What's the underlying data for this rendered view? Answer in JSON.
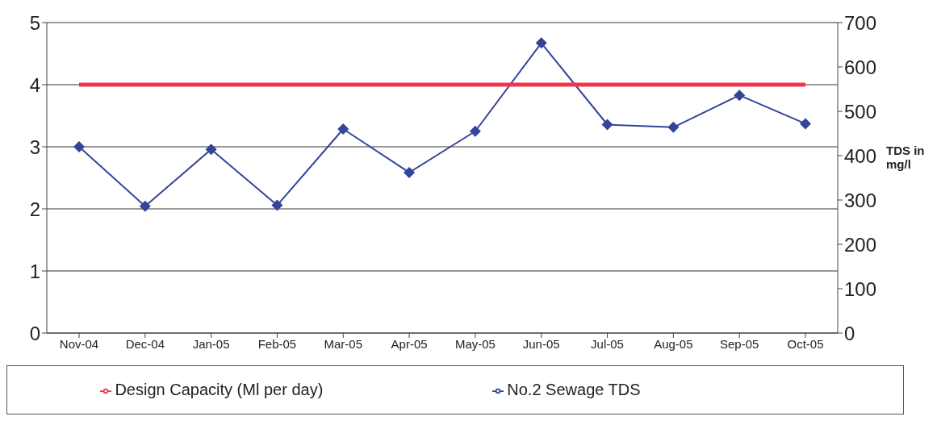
{
  "chart_data": {
    "type": "line",
    "y2label": "TDS in mg/l",
    "categories": [
      "Nov-04",
      "Dec-04",
      "Jan-05",
      "Feb-05",
      "Mar-05",
      "Apr-05",
      "May-05",
      "Jun-05",
      "Jul-05",
      "Aug-05",
      "Sep-05",
      "Oct-05"
    ],
    "series": [
      {
        "name": "No.2 Sewage TDS",
        "color": "#33449a",
        "axis": "y2",
        "marker": "diamond",
        "values": [
          420,
          286,
          414,
          288,
          460,
          362,
          455,
          654,
          470,
          464,
          536,
          472
        ]
      },
      {
        "name": "Design Capacity (Ml per day)",
        "color": "#f0344e",
        "marker": "none",
        "values": [
          4,
          4,
          4,
          4,
          4,
          4,
          4,
          4,
          4,
          4,
          4,
          4
        ]
      }
    ],
    "ylim": [
      0,
      5
    ],
    "yticks": [
      0,
      1,
      2,
      3,
      4,
      5
    ],
    "y2lim": [
      0,
      700
    ],
    "y2ticks": [
      0,
      100,
      200,
      300,
      400,
      500,
      600,
      700
    ],
    "grid": "y",
    "legend": "bottom"
  }
}
